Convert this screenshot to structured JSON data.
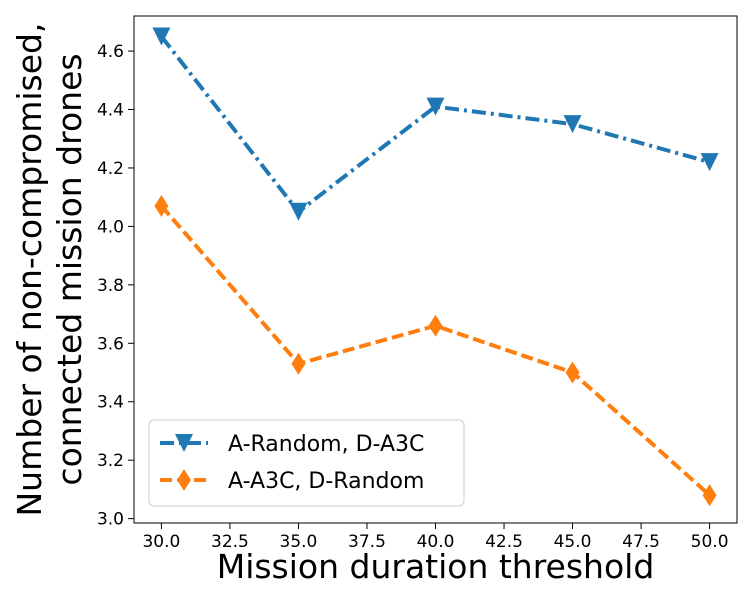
{
  "chart_data": {
    "type": "line",
    "title": "",
    "xlabel": "Mission duration threshold",
    "ylabel_lines": [
      "Number of non-compromised,",
      "connected mission drones"
    ],
    "x": [
      30,
      35,
      40,
      45,
      50
    ],
    "xlim": [
      29.0,
      51.0
    ],
    "ylim": [
      2.985,
      4.72
    ],
    "xticks": [
      "30.0",
      "32.5",
      "35.0",
      "37.5",
      "40.0",
      "42.5",
      "45.0",
      "47.5",
      "50.0"
    ],
    "xtick_values": [
      30,
      32.5,
      35,
      37.5,
      40,
      42.5,
      45,
      47.5,
      50
    ],
    "yticks": [
      "3.0",
      "3.2",
      "3.4",
      "3.6",
      "3.8",
      "4.0",
      "4.2",
      "4.4",
      "4.6"
    ],
    "ytick_values": [
      3.0,
      3.2,
      3.4,
      3.6,
      3.8,
      4.0,
      4.2,
      4.4,
      4.6
    ],
    "grid": false,
    "legend_position": "bottom-left",
    "series": [
      {
        "name": "A-Random, D-A3C",
        "values": [
          4.65,
          4.05,
          4.41,
          4.35,
          4.22
        ],
        "color": "#1f77b4",
        "line_style": "dashdot",
        "marker": "triangle-down"
      },
      {
        "name": "A-A3C, D-Random",
        "values": [
          4.07,
          3.53,
          3.66,
          3.5,
          3.08
        ],
        "color": "#ff7f0e",
        "line_style": "dashed",
        "marker": "thin-diamond"
      }
    ]
  }
}
